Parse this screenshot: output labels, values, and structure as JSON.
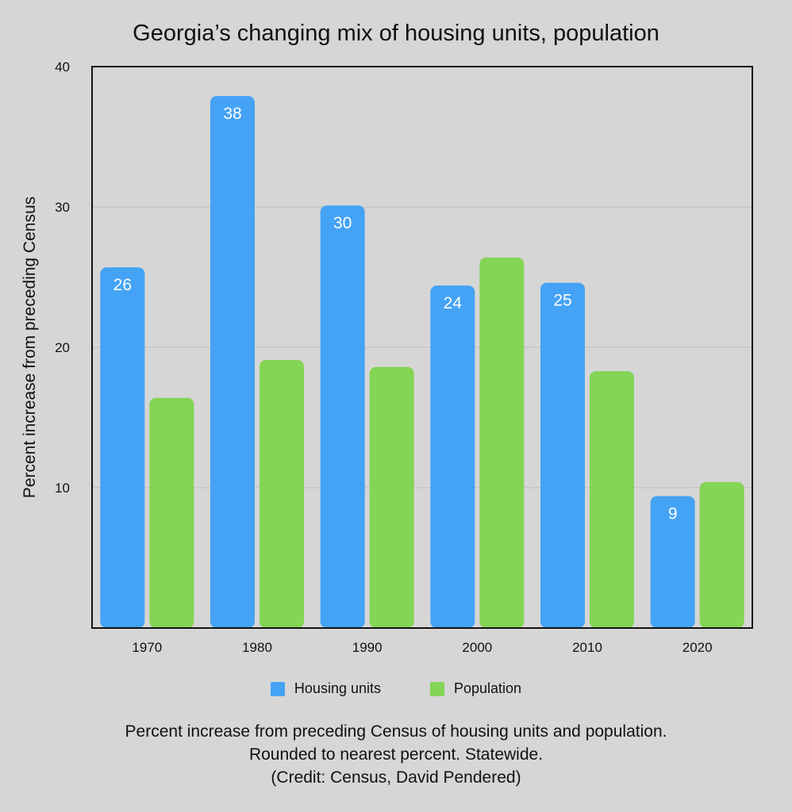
{
  "chart_data": {
    "type": "bar",
    "title": "Georgia’s changing mix of housing units, population",
    "ylabel": "Percent increase from preceding Census",
    "xlabel": "",
    "categories": [
      "1970",
      "1980",
      "1990",
      "2000",
      "2010",
      "2020"
    ],
    "ylim": [
      0,
      40
    ],
    "yticks": [
      10,
      20,
      30,
      40
    ],
    "grid": true,
    "legend_position": "bottom",
    "series": [
      {
        "name": "Housing units",
        "color": "#44a3f5",
        "values": [
          25.7,
          37.9,
          30.1,
          24.4,
          24.6,
          9.4
        ],
        "labels": [
          "26",
          "38",
          "30",
          "24",
          "25",
          "9"
        ]
      },
      {
        "name": "Population",
        "color": "#84d455",
        "values": [
          16.4,
          19.1,
          18.6,
          26.4,
          18.3,
          10.4
        ],
        "labels": []
      }
    ],
    "caption": [
      "Percent increase from preceding Census of housing units and population.",
      "Rounded to nearest percent. Statewide.",
      "(Credit: Census, David Pendered)"
    ]
  }
}
